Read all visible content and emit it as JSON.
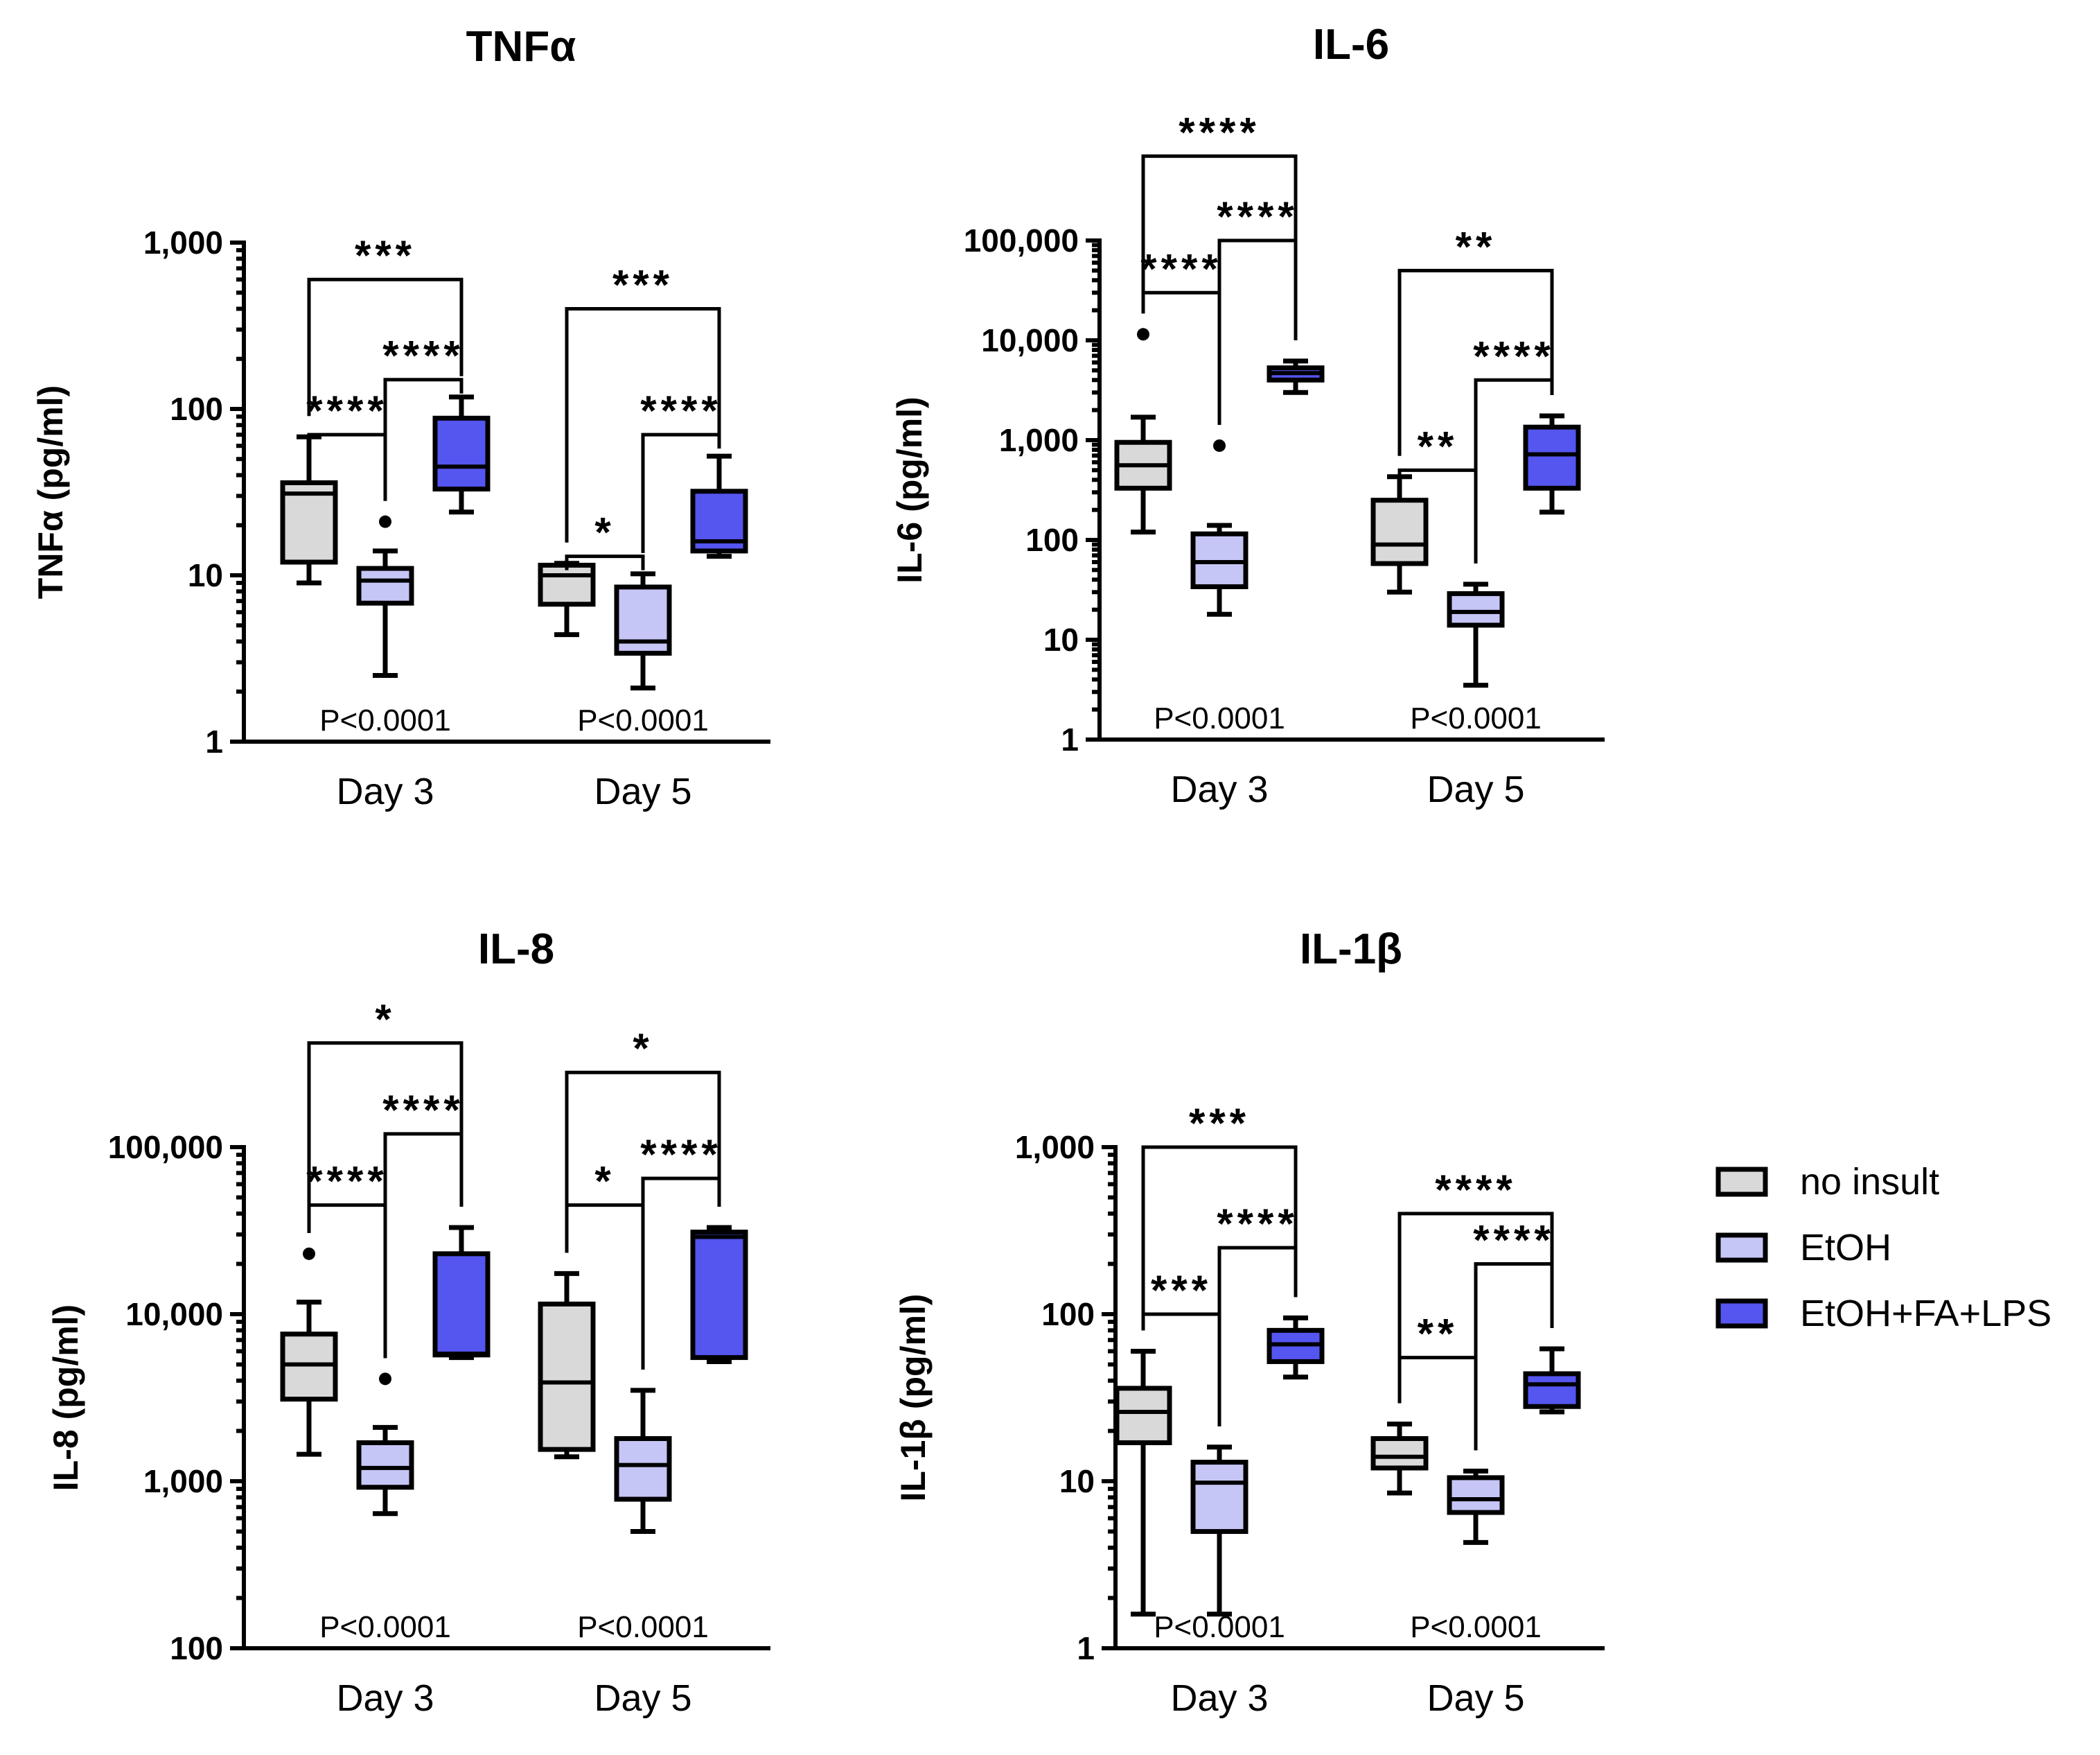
{
  "legend": [
    {
      "label": "no insult",
      "color": "#d9d9d9"
    },
    {
      "label": "EtOH",
      "color": "#c5c5f6"
    },
    {
      "label": "EtOH+FA+LPS",
      "color": "#5555f0"
    }
  ],
  "chart_data": [
    {
      "type": "box",
      "title": "TNFα",
      "ylabel": "TNFα (pg/ml)",
      "yscale": "log",
      "ylim": [
        1,
        1000
      ],
      "yticks": [
        {
          "v": 1,
          "label": "1"
        },
        {
          "v": 10,
          "label": "10"
        },
        {
          "v": 100,
          "label": "100"
        },
        {
          "v": 1000,
          "label": "1,000"
        }
      ],
      "categories": [
        "Day 3",
        "Day 5"
      ],
      "pvalues": [
        "P<0.0001",
        "P<0.0001"
      ],
      "groups": [
        [
          {
            "series": "no insult",
            "min": 9,
            "q1": 12,
            "median": 31,
            "q3": 36,
            "max": 68,
            "outliers": []
          },
          {
            "series": "EtOH",
            "min": 2.5,
            "q1": 6.8,
            "median": 9.3,
            "q3": 11,
            "max": 14,
            "outliers": [
              21
            ]
          },
          {
            "series": "EtOH+FA+LPS",
            "min": 24,
            "q1": 33,
            "median": 45,
            "q3": 88,
            "max": 118,
            "outliers": []
          }
        ],
        [
          {
            "series": "no insult",
            "min": 4.4,
            "q1": 6.7,
            "median": 10,
            "q3": 11.5,
            "max": 11.8,
            "outliers": []
          },
          {
            "series": "EtOH",
            "min": 2.1,
            "q1": 3.4,
            "median": 4,
            "q3": 8.5,
            "max": 10.2,
            "outliers": []
          },
          {
            "series": "EtOH+FA+LPS",
            "min": 13,
            "q1": 14,
            "median": 16,
            "q3": 32,
            "max": 52,
            "outliers": []
          }
        ]
      ],
      "brackets": [
        {
          "group": 0,
          "from": 0,
          "to": 2,
          "y": 600,
          "label": "***"
        },
        {
          "group": 0,
          "from": 1,
          "to": 2,
          "y": 150,
          "label": "****"
        },
        {
          "group": 0,
          "from": 0,
          "to": 1,
          "y": 70,
          "label": "****"
        },
        {
          "group": 1,
          "from": 0,
          "to": 2,
          "y": 400,
          "label": "***"
        },
        {
          "group": 1,
          "from": 1,
          "to": 2,
          "y": 70,
          "label": "****"
        },
        {
          "group": 1,
          "from": 0,
          "to": 1,
          "y": 13,
          "label": "*"
        }
      ]
    },
    {
      "type": "box",
      "title": "IL-6",
      "ylabel": "IL-6 (pg/ml)",
      "yscale": "log",
      "ylim": [
        1,
        100000
      ],
      "yticks": [
        {
          "v": 1,
          "label": "1"
        },
        {
          "v": 10,
          "label": "10"
        },
        {
          "v": 100,
          "label": "100"
        },
        {
          "v": 1000,
          "label": "1,000"
        },
        {
          "v": 10000,
          "label": "10,000"
        },
        {
          "v": 100000,
          "label": "100,000"
        }
      ],
      "categories": [
        "Day 3",
        "Day 5"
      ],
      "pvalues": [
        "P<0.0001",
        "P<0.0001"
      ],
      "groups": [
        [
          {
            "series": "no insult",
            "min": 120,
            "q1": 330,
            "median": 560,
            "q3": 950,
            "max": 1700,
            "outliers": [
              11500
            ]
          },
          {
            "series": "EtOH",
            "min": 18,
            "q1": 34,
            "median": 60,
            "q3": 115,
            "max": 140,
            "outliers": [
              880
            ]
          },
          {
            "series": "EtOH+FA+LPS",
            "min": 3000,
            "q1": 4000,
            "median": 4700,
            "q3": 5300,
            "max": 6200,
            "outliers": []
          }
        ],
        [
          {
            "series": "no insult",
            "min": 30,
            "q1": 58,
            "median": 90,
            "q3": 250,
            "max": 430,
            "outliers": []
          },
          {
            "series": "EtOH",
            "min": 3.5,
            "q1": 14,
            "median": 19,
            "q3": 29,
            "max": 36,
            "outliers": []
          },
          {
            "series": "EtOH+FA+LPS",
            "min": 190,
            "q1": 330,
            "median": 720,
            "q3": 1350,
            "max": 1750,
            "outliers": []
          }
        ]
      ],
      "brackets": [
        {
          "group": 0,
          "from": 0,
          "to": 2,
          "y": 700000,
          "label": "****"
        },
        {
          "group": 0,
          "from": 1,
          "to": 2,
          "y": 100000,
          "label": "****"
        },
        {
          "group": 0,
          "from": 0,
          "to": 1,
          "y": 30000,
          "label": "****"
        },
        {
          "group": 1,
          "from": 0,
          "to": 2,
          "y": 50000,
          "label": "**"
        },
        {
          "group": 1,
          "from": 1,
          "to": 2,
          "y": 4000,
          "label": "****"
        },
        {
          "group": 1,
          "from": 0,
          "to": 1,
          "y": 500,
          "label": "**"
        }
      ]
    },
    {
      "type": "box",
      "title": "IL-8",
      "ylabel": "IL-8 (pg/ml)",
      "yscale": "log",
      "ylim": [
        100,
        100000
      ],
      "yticks": [
        {
          "v": 100,
          "label": "100"
        },
        {
          "v": 1000,
          "label": "1,000"
        },
        {
          "v": 10000,
          "label": "10,000"
        },
        {
          "v": 100000,
          "label": "100,000"
        }
      ],
      "categories": [
        "Day 3",
        "Day 5"
      ],
      "pvalues": [
        "P<0.0001",
        "P<0.0001"
      ],
      "groups": [
        [
          {
            "series": "no insult",
            "min": 1450,
            "q1": 3100,
            "median": 5000,
            "q3": 7600,
            "max": 11800,
            "outliers": [
              23000
            ]
          },
          {
            "series": "EtOH",
            "min": 640,
            "q1": 920,
            "median": 1200,
            "q3": 1700,
            "max": 2100,
            "outliers": [
              4100
            ]
          },
          {
            "series": "EtOH+FA+LPS",
            "min": 5500,
            "q1": 5700,
            "median": 5800,
            "q3": 23000,
            "max": 33000,
            "outliers": []
          }
        ],
        [
          {
            "series": "no insult",
            "min": 1400,
            "q1": 1550,
            "median": 3900,
            "q3": 11500,
            "max": 17500,
            "outliers": []
          },
          {
            "series": "EtOH",
            "min": 500,
            "q1": 780,
            "median": 1250,
            "q3": 1800,
            "max": 3500,
            "outliers": []
          },
          {
            "series": "EtOH+FA+LPS",
            "min": 5200,
            "q1": 5500,
            "median": 29000,
            "q3": 31000,
            "max": 33000,
            "outliers": []
          }
        ]
      ],
      "brackets": [
        {
          "group": 0,
          "from": 0,
          "to": 2,
          "y": 420000,
          "label": "*"
        },
        {
          "group": 0,
          "from": 1,
          "to": 2,
          "y": 120000,
          "label": "****"
        },
        {
          "group": 0,
          "from": 0,
          "to": 1,
          "y": 45000,
          "label": "****"
        },
        {
          "group": 1,
          "from": 0,
          "to": 2,
          "y": 280000,
          "label": "*"
        },
        {
          "group": 1,
          "from": 1,
          "to": 2,
          "y": 65000,
          "label": "****"
        },
        {
          "group": 1,
          "from": 0,
          "to": 1,
          "y": 45000,
          "label": "*"
        }
      ]
    },
    {
      "type": "box",
      "title": "IL-1β",
      "ylabel": "IL-1β (pg/ml)",
      "yscale": "log",
      "ylim": [
        1,
        1000
      ],
      "yticks": [
        {
          "v": 1,
          "label": "1"
        },
        {
          "v": 10,
          "label": "10"
        },
        {
          "v": 100,
          "label": "100"
        },
        {
          "v": 1000,
          "label": "1,000"
        }
      ],
      "categories": [
        "Day 3",
        "Day 5"
      ],
      "pvalues": [
        "P<0.0001",
        "P<0.0001"
      ],
      "groups": [
        [
          {
            "series": "no insult",
            "min": 1.6,
            "q1": 17,
            "median": 26,
            "q3": 36,
            "max": 60,
            "outliers": []
          },
          {
            "series": "EtOH",
            "min": 1.6,
            "q1": 5,
            "median": 9.8,
            "q3": 13,
            "max": 16,
            "outliers": []
          },
          {
            "series": "EtOH+FA+LPS",
            "min": 42,
            "q1": 52,
            "median": 66,
            "q3": 80,
            "max": 95,
            "outliers": []
          }
        ],
        [
          {
            "series": "no insult",
            "min": 8.5,
            "q1": 12,
            "median": 14,
            "q3": 18,
            "max": 22,
            "outliers": []
          },
          {
            "series": "EtOH",
            "min": 4.3,
            "q1": 6.5,
            "median": 7.8,
            "q3": 10.5,
            "max": 11.5,
            "outliers": []
          },
          {
            "series": "EtOH+FA+LPS",
            "min": 26,
            "q1": 28,
            "median": 38,
            "q3": 44,
            "max": 62,
            "outliers": []
          }
        ]
      ],
      "brackets": [
        {
          "group": 0,
          "from": 0,
          "to": 2,
          "y": 1000,
          "label": "***"
        },
        {
          "group": 0,
          "from": 1,
          "to": 2,
          "y": 250,
          "label": "****"
        },
        {
          "group": 0,
          "from": 0,
          "to": 1,
          "y": 100,
          "label": "***"
        },
        {
          "group": 1,
          "from": 0,
          "to": 2,
          "y": 400,
          "label": "****"
        },
        {
          "group": 1,
          "from": 1,
          "to": 2,
          "y": 200,
          "label": "****"
        },
        {
          "group": 1,
          "from": 0,
          "to": 1,
          "y": 55,
          "label": "**"
        }
      ]
    }
  ]
}
